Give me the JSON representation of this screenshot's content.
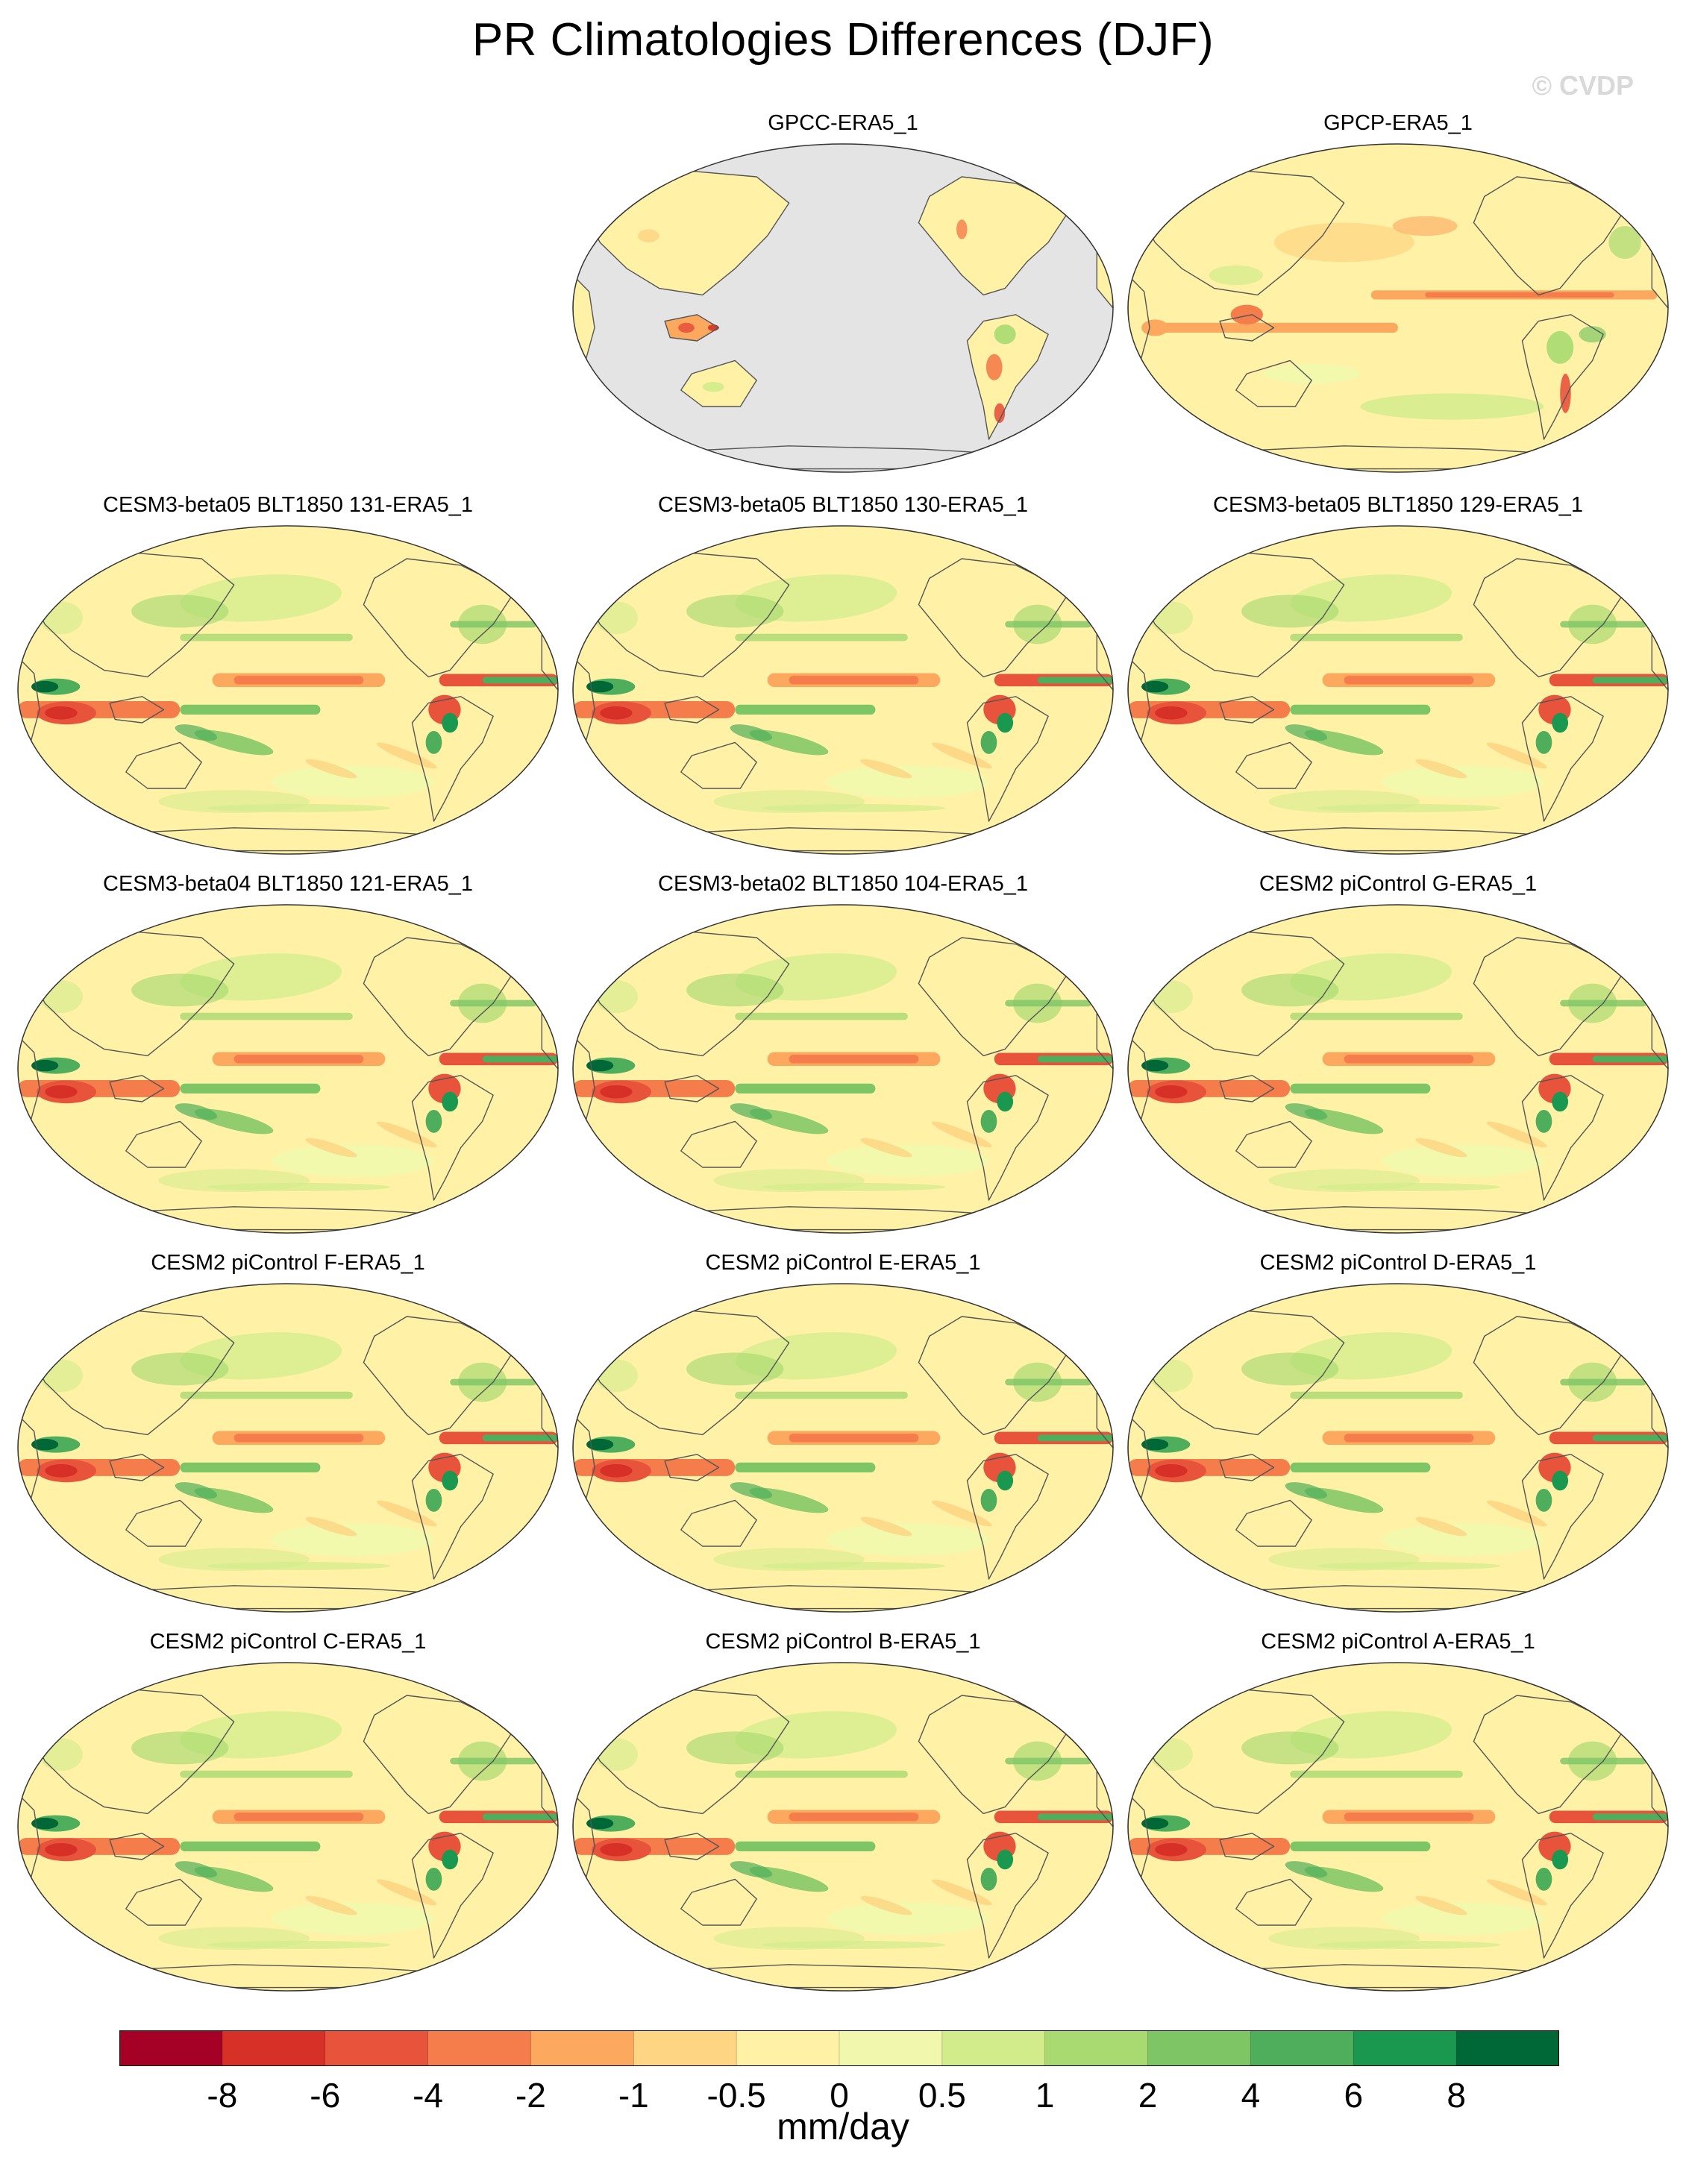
{
  "title": "PR Climatologies Differences (DJF)",
  "watermark": "© CVDP",
  "panels": [
    {
      "label": "GPCC-ERA5_1",
      "kind": "land"
    },
    {
      "label": "GPCP-ERA5_1",
      "kind": "obs"
    },
    {
      "label": "CESM3-beta05 BLT1850 131-ERA5_1",
      "kind": "model"
    },
    {
      "label": "CESM3-beta05 BLT1850 130-ERA5_1",
      "kind": "model"
    },
    {
      "label": "CESM3-beta05 BLT1850 129-ERA5_1",
      "kind": "model"
    },
    {
      "label": "CESM3-beta04 BLT1850 121-ERA5_1",
      "kind": "model"
    },
    {
      "label": "CESM3-beta02 BLT1850 104-ERA5_1",
      "kind": "model"
    },
    {
      "label": "CESM2 piControl G-ERA5_1",
      "kind": "model"
    },
    {
      "label": "CESM2 piControl F-ERA5_1",
      "kind": "model"
    },
    {
      "label": "CESM2 piControl E-ERA5_1",
      "kind": "model"
    },
    {
      "label": "CESM2 piControl D-ERA5_1",
      "kind": "model"
    },
    {
      "label": "CESM2 piControl C-ERA5_1",
      "kind": "model"
    },
    {
      "label": "CESM2 piControl B-ERA5_1",
      "kind": "model"
    },
    {
      "label": "CESM2 piControl A-ERA5_1",
      "kind": "model"
    }
  ],
  "colorbar": {
    "colors": [
      "#a50026",
      "#d73027",
      "#e8533c",
      "#f47d4b",
      "#fca95f",
      "#fdd583",
      "#fff1a6",
      "#f1f8ad",
      "#d2ec8c",
      "#a9da72",
      "#7ec665",
      "#4eae5b",
      "#1a9850",
      "#006837"
    ],
    "ticks": [
      "-8",
      "-6",
      "-4",
      "-2",
      "-1",
      "-0.5",
      "0",
      "0.5",
      "1",
      "2",
      "4",
      "6",
      "8"
    ],
    "units": "mm/day"
  },
  "map_colors": {
    "background": "#fff1a6",
    "land_mask": "#e4e4e4",
    "coast": "#555555"
  }
}
